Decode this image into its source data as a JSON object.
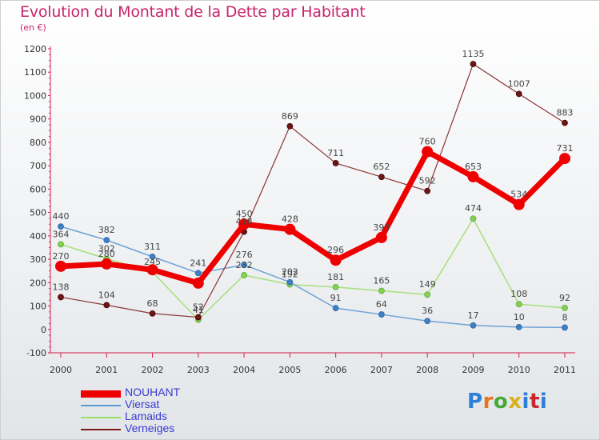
{
  "header": {
    "title": "Evolution du Montant de la Dette par Habitant",
    "subtitle": "(en €)"
  },
  "logo": {
    "text": "Proxiti",
    "colors": [
      "#2e7fd6",
      "#e8741f",
      "#47a93a",
      "#d8b11c",
      "#2e7fd6",
      "#c9272e",
      "#2e7fd6"
    ]
  },
  "chart_data": {
    "type": "line",
    "title": "Evolution du Montant de la Dette par Habitant",
    "subtitle": "(en €)",
    "categories": [
      "2000",
      "2001",
      "2002",
      "2003",
      "2004",
      "2005",
      "2006",
      "2007",
      "2008",
      "2009",
      "2010",
      "2011"
    ],
    "ylim": [
      -100,
      1200
    ],
    "yticks": [
      -100,
      0,
      100,
      200,
      300,
      400,
      500,
      600,
      700,
      800,
      900,
      1000,
      1100,
      1200
    ],
    "grid": false,
    "legend_position": "bottom-left",
    "series": [
      {
        "name": "NOUHANT",
        "color": "#ee0000",
        "values": [
          270,
          280,
          255,
          198,
          450,
          428,
          296,
          393,
          760,
          653,
          534,
          731
        ],
        "labels": [
          "270",
          "280",
          "",
          "",
          "450",
          "428",
          "296",
          "393",
          "760",
          "653",
          "534",
          "731"
        ]
      },
      {
        "name": "Viersat",
        "color": "#5b9bd5",
        "values": [
          440,
          382,
          311,
          241,
          276,
          202,
          91,
          64,
          36,
          17,
          10,
          8
        ],
        "labels": [
          "440",
          "382",
          "311",
          "241",
          "276",
          "202",
          "91",
          "64",
          "36",
          "17",
          "10",
          "8"
        ]
      },
      {
        "name": "Lamaids",
        "color": "#99e06a",
        "values": [
          364,
          302,
          245,
          41,
          232,
          192,
          181,
          165,
          149,
          474,
          108,
          92
        ],
        "labels": [
          "364",
          "302",
          "245",
          "41",
          "232",
          "192",
          "181",
          "165",
          "149",
          "474",
          "108",
          "92"
        ]
      },
      {
        "name": "Verneiges",
        "color": "#7b1b1b",
        "values": [
          138,
          104,
          68,
          52,
          418,
          869,
          711,
          652,
          592,
          1135,
          1007,
          883
        ],
        "labels": [
          "138",
          "104",
          "68",
          "52",
          "418",
          "869",
          "711",
          "652",
          "592",
          "1135",
          "1007",
          "883"
        ]
      }
    ]
  }
}
